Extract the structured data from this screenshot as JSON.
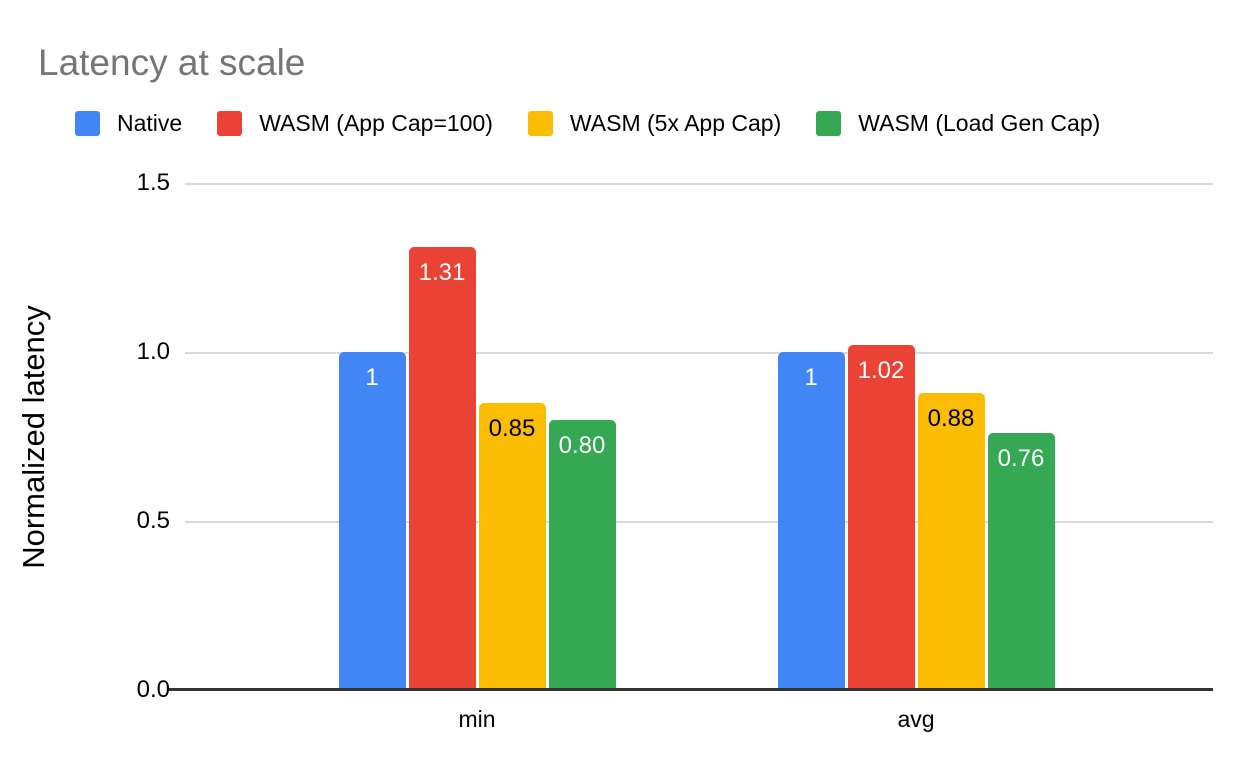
{
  "title": "Latency at scale",
  "chart_data": {
    "type": "bar",
    "title": "Latency at scale",
    "ylabel": "Normalized latency",
    "ylim": [
      0,
      1.5
    ],
    "yticks": [
      0.0,
      0.5,
      1.0,
      1.5
    ],
    "ytick_labels": [
      "0.0",
      "0.5",
      "1.0",
      "1.5"
    ],
    "grid": true,
    "legend_position": "top",
    "categories": [
      "min",
      "avg"
    ],
    "series": [
      {
        "name": "Native",
        "color": "#4285F4",
        "label_color": "#ffffff",
        "values": [
          1.0,
          1.0
        ],
        "value_labels": [
          "1",
          "1"
        ]
      },
      {
        "name": "WASM (App Cap=100)",
        "color": "#EA4335",
        "label_color": "#ffffff",
        "values": [
          1.31,
          1.02
        ],
        "value_labels": [
          "1.31",
          "1.02"
        ]
      },
      {
        "name": "WASM (5x App Cap)",
        "color": "#FBBC04",
        "label_color": "#000000",
        "values": [
          0.85,
          0.88
        ],
        "value_labels": [
          "0.85",
          "0.88"
        ]
      },
      {
        "name": "WASM (Load Gen Cap)",
        "color": "#34A853",
        "label_color": "#ffffff",
        "values": [
          0.8,
          0.76
        ],
        "value_labels": [
          "0.80",
          "0.76"
        ]
      }
    ]
  },
  "colors": {
    "background": "#ffffff",
    "title_text": "#757575",
    "axis_text": "#000000",
    "gridline": "#d9d9d9",
    "axis_line": "#333333"
  }
}
